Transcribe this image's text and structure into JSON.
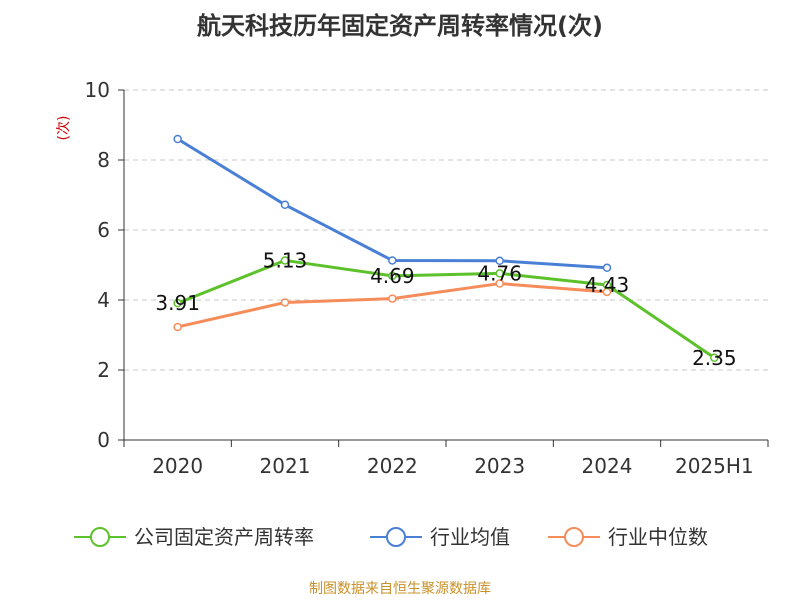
{
  "title": "航天科技历年固定资产周转率情况(次)",
  "source": "制图数据来自恒生聚源数据库",
  "chart_data": {
    "type": "line",
    "title": "航天科技历年固定资产周转率情况(次)",
    "ylabel": "(次)",
    "categories": [
      "2020",
      "2021",
      "2022",
      "2023",
      "2024",
      "2025H1"
    ],
    "ylim": [
      0,
      10
    ],
    "yticks": [
      0,
      2,
      4,
      6,
      8,
      10
    ],
    "grid": true,
    "legend_position": "bottom",
    "series": [
      {
        "name": "公司固定资产周转率",
        "color": "#5cc12a",
        "values": [
          3.91,
          5.13,
          4.69,
          4.76,
          4.43,
          2.35
        ],
        "labels": [
          "3.91",
          "5.13",
          "4.69",
          "4.76",
          "4.43",
          "2.35"
        ]
      },
      {
        "name": "行业均值",
        "color": "#4a7fd6",
        "values": [
          8.6,
          6.72,
          5.13,
          5.12,
          4.92,
          null
        ]
      },
      {
        "name": "行业中位数",
        "color": "#f58c5a",
        "values": [
          3.23,
          3.93,
          4.04,
          4.47,
          4.23,
          null
        ]
      }
    ]
  }
}
